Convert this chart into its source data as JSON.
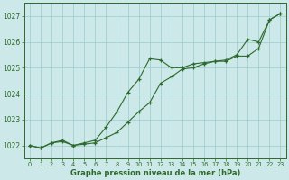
{
  "line1_x": [
    0,
    1,
    2,
    3,
    4,
    5,
    6,
    7,
    8,
    9,
    10,
    11,
    12,
    13,
    14,
    15,
    16,
    17,
    18,
    19,
    20,
    21,
    22,
    23
  ],
  "line1_y": [
    1022.0,
    1021.9,
    1022.1,
    1022.2,
    1022.0,
    1022.1,
    1022.2,
    1022.7,
    1023.3,
    1024.05,
    1024.55,
    1025.35,
    1025.3,
    1025.0,
    1025.0,
    1025.15,
    1025.2,
    1025.25,
    1025.3,
    1025.5,
    1026.1,
    1026.0,
    1026.85,
    1027.1
  ],
  "line2_x": [
    0,
    1,
    2,
    3,
    4,
    5,
    6,
    7,
    8,
    9,
    10,
    11,
    12,
    13,
    14,
    15,
    16,
    17,
    18,
    19,
    20,
    21,
    22,
    23
  ],
  "line2_y": [
    1022.0,
    1021.9,
    1022.1,
    1022.15,
    1022.0,
    1022.05,
    1022.1,
    1022.3,
    1022.5,
    1022.9,
    1023.3,
    1023.65,
    1024.4,
    1024.65,
    1024.95,
    1025.0,
    1025.15,
    1025.25,
    1025.25,
    1025.45,
    1025.45,
    1025.75,
    1026.85,
    1027.1
  ],
  "line_color": "#2d6a2d",
  "bg_color": "#cce8e8",
  "grid_color": "#99cccc",
  "xlabel": "Graphe pression niveau de la mer (hPa)",
  "ylim": [
    1021.5,
    1027.5
  ],
  "xlim_min": -0.5,
  "xlim_max": 23.5,
  "yticks": [
    1022,
    1023,
    1024,
    1025,
    1026,
    1027
  ],
  "xticks": [
    0,
    1,
    2,
    3,
    4,
    5,
    6,
    7,
    8,
    9,
    10,
    11,
    12,
    13,
    14,
    15,
    16,
    17,
    18,
    19,
    20,
    21,
    22,
    23
  ],
  "tick_color": "#2d6a2d",
  "marker": "+"
}
